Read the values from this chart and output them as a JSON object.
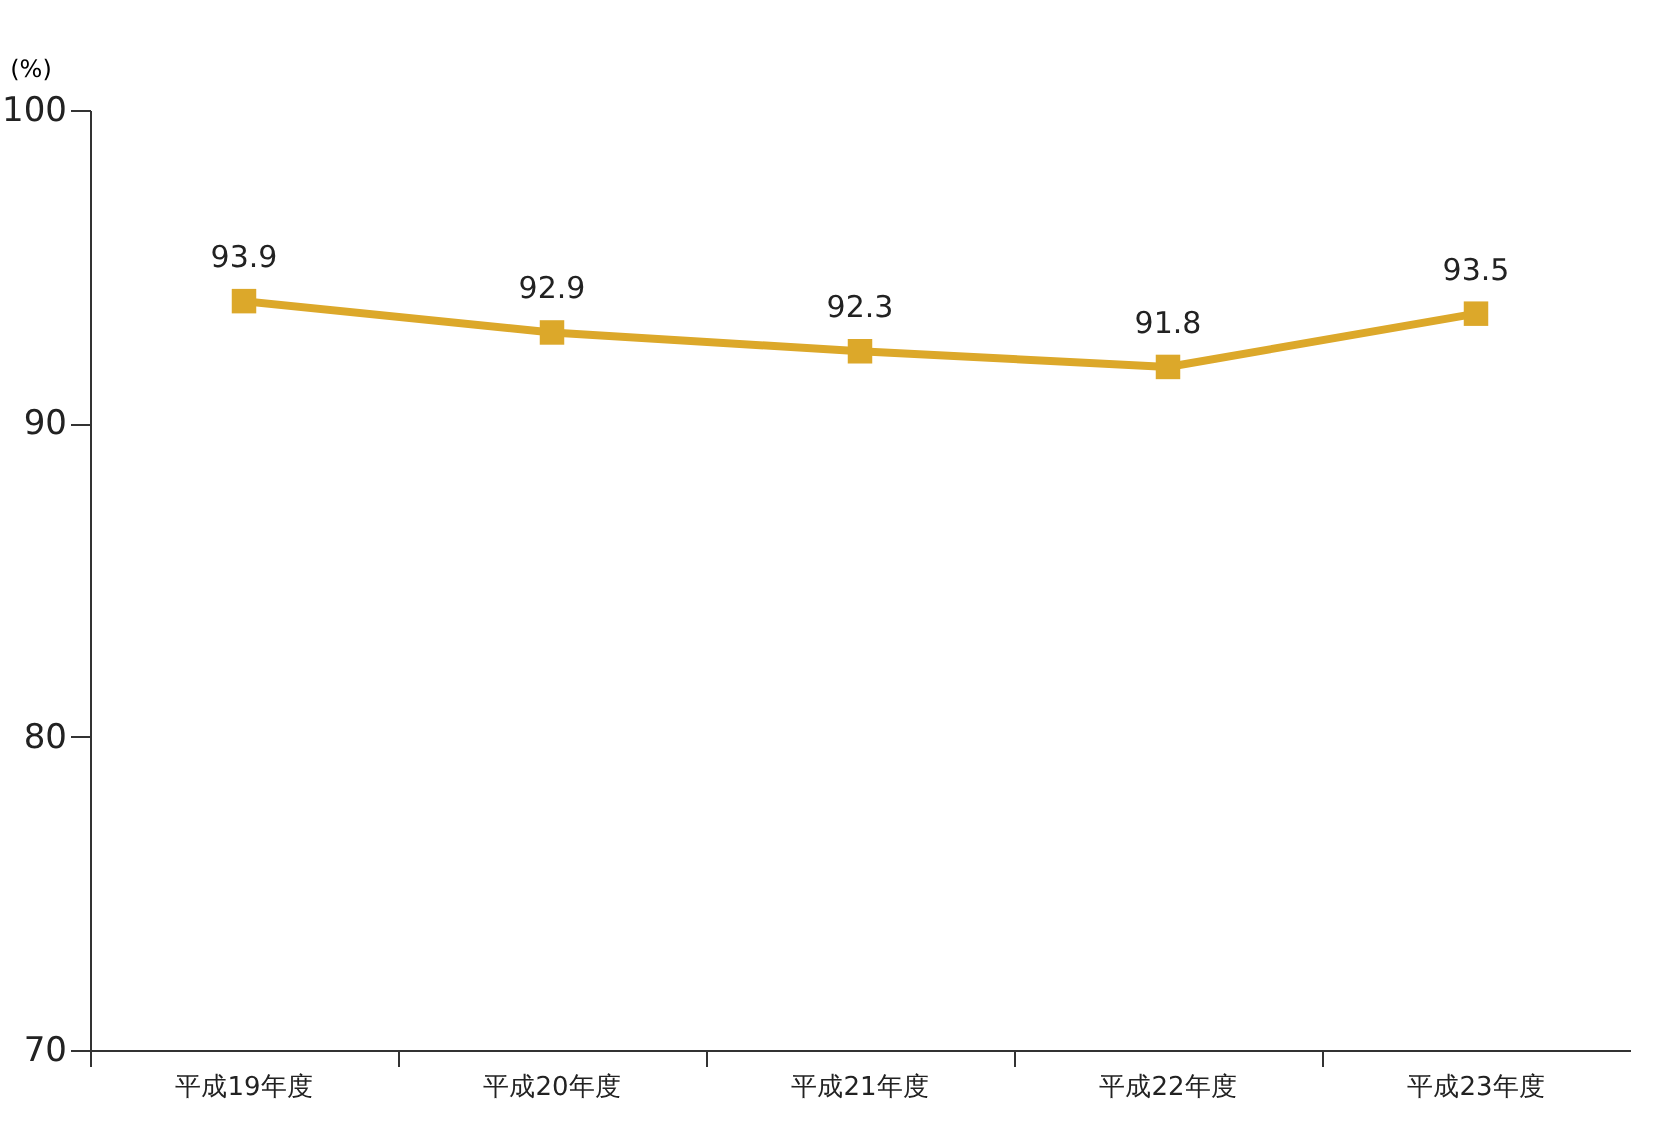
{
  "chart_data": {
    "type": "line",
    "ylabel": "(%)",
    "categories": [
      "平成19年度",
      "平成20年度",
      "平成21年度",
      "平成22年度",
      "平成23年度"
    ],
    "series": [
      {
        "color": "#dca82a",
        "values": [
          93.9,
          92.9,
          92.3,
          91.8,
          93.5
        ]
      }
    ],
    "ylim": [
      70,
      100
    ],
    "yticks": [
      70,
      80,
      90,
      100
    ],
    "grid": false,
    "legend": false,
    "marker": "square",
    "line_style": "solid",
    "data_labels": true
  }
}
